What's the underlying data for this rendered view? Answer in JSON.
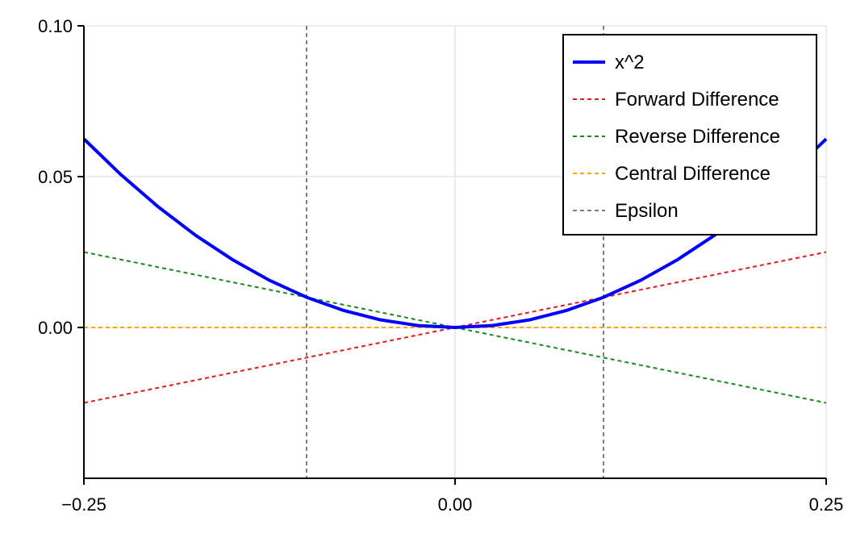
{
  "chart_data": {
    "type": "line",
    "title": "",
    "xlabel": "",
    "ylabel": "",
    "xlim": [
      -0.25,
      0.25
    ],
    "ylim": [
      -0.05,
      0.1
    ],
    "x_ticks": [
      -0.25,
      0.0,
      0.25
    ],
    "x_tick_labels": [
      "−0.25",
      "0.00",
      "0.25"
    ],
    "y_ticks": [
      0.0,
      0.05,
      0.1
    ],
    "y_tick_labels": [
      "0.00",
      "0.05",
      "0.10"
    ],
    "grid": true,
    "legend_position": "top-right",
    "series": [
      {
        "name": "x^2",
        "style": "solid",
        "color": "#0000ff",
        "x": [
          -0.25,
          -0.225,
          -0.2,
          -0.175,
          -0.15,
          -0.125,
          -0.1,
          -0.075,
          -0.05,
          -0.025,
          0.0,
          0.025,
          0.05,
          0.075,
          0.1,
          0.125,
          0.15,
          0.175,
          0.2,
          0.225,
          0.25
        ],
        "y": [
          0.0625,
          0.050625,
          0.04,
          0.030625,
          0.0225,
          0.015625,
          0.01,
          0.005625,
          0.0025,
          0.000625,
          0.0,
          0.000625,
          0.0025,
          0.005625,
          0.01,
          0.015625,
          0.0225,
          0.030625,
          0.04,
          0.050625,
          0.0625
        ]
      },
      {
        "name": "Forward Difference",
        "style": "dashed",
        "color": "#e41a1c",
        "x": [
          -0.25,
          0.25
        ],
        "y": [
          -0.025,
          0.025
        ]
      },
      {
        "name": "Reverse Difference",
        "style": "dashed",
        "color": "#1a8a1a",
        "x": [
          -0.25,
          0.25
        ],
        "y": [
          0.025,
          -0.025
        ]
      },
      {
        "name": "Central Difference",
        "style": "dashed",
        "color": "#ffa500",
        "x": [
          -0.25,
          0.25
        ],
        "y": [
          0.0,
          0.0
        ]
      },
      {
        "name": "Epsilon",
        "style": "dashed",
        "color": "#808080",
        "vlines": [
          -0.1,
          0.1
        ]
      }
    ]
  }
}
